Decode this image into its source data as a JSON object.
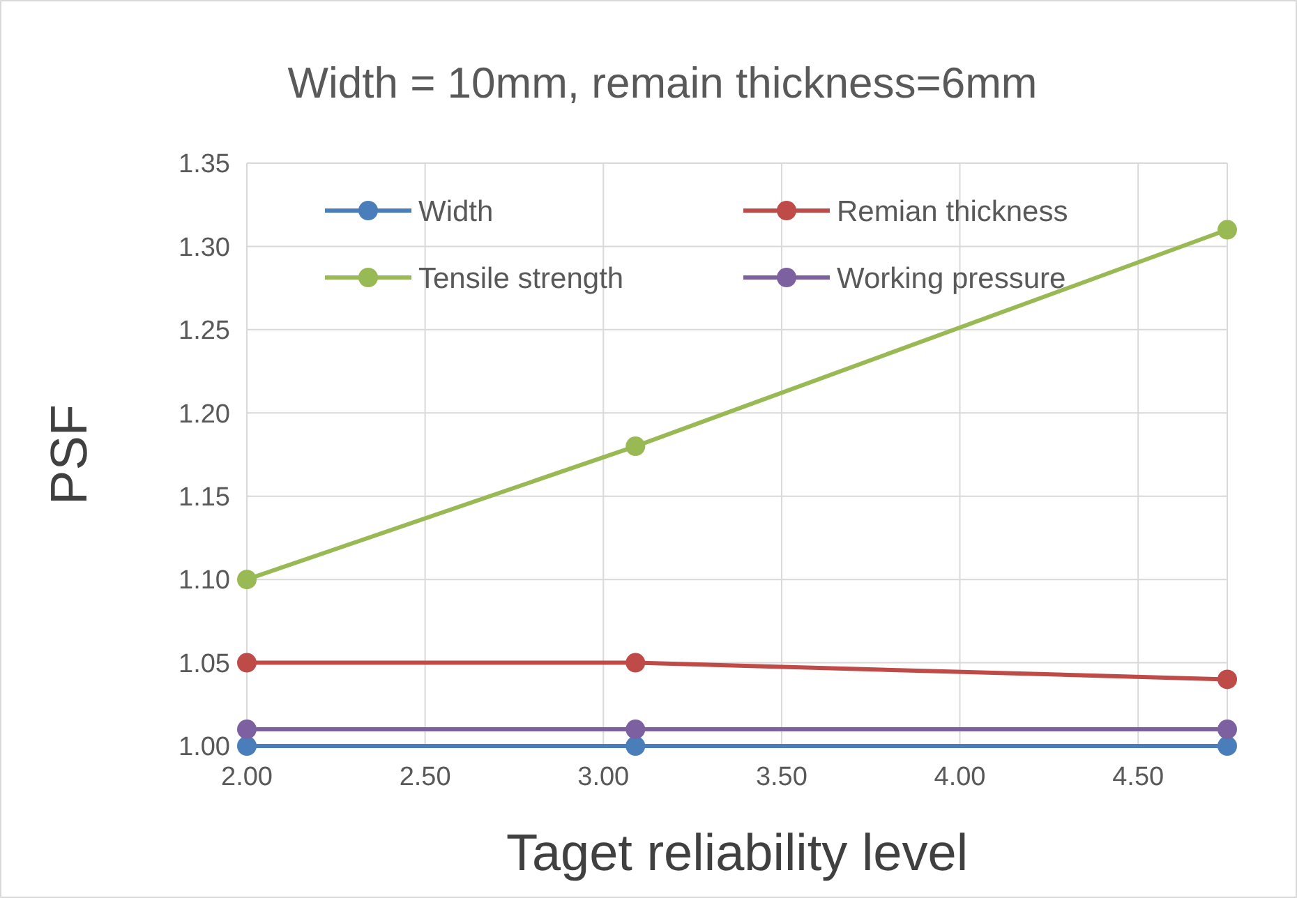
{
  "chart_data": {
    "type": "line",
    "title": "Width = 10mm, remain thickness=6mm",
    "xlabel": "Taget reliability level",
    "ylabel": "PSF",
    "x": [
      2.0,
      3.09,
      4.75
    ],
    "series": [
      {
        "name": "Width",
        "color": "#4a7ebb",
        "values": [
          1.0,
          1.0,
          1.0
        ]
      },
      {
        "name": "Remian thickness",
        "color": "#be4b48",
        "values": [
          1.05,
          1.05,
          1.04
        ]
      },
      {
        "name": "Tensile strength",
        "color": "#98b954",
        "values": [
          1.1,
          1.18,
          1.31
        ]
      },
      {
        "name": "Working pressure",
        "color": "#7d60a0",
        "values": [
          1.01,
          1.01,
          1.01
        ]
      }
    ],
    "xlim": [
      2.0,
      4.75
    ],
    "xticks": [
      {
        "value": 2.0,
        "label": "2.00"
      },
      {
        "value": 2.5,
        "label": "2.50"
      },
      {
        "value": 3.0,
        "label": "3.00"
      },
      {
        "value": 3.5,
        "label": "3.50"
      },
      {
        "value": 4.0,
        "label": "4.00"
      },
      {
        "value": 4.5,
        "label": "4.50"
      }
    ],
    "ylim": [
      1.0,
      1.35
    ],
    "yticks": [
      {
        "value": 1.0,
        "label": "1.00"
      },
      {
        "value": 1.05,
        "label": "1.05"
      },
      {
        "value": 1.1,
        "label": "1.10"
      },
      {
        "value": 1.15,
        "label": "1.15"
      },
      {
        "value": 1.2,
        "label": "1.20"
      },
      {
        "value": 1.25,
        "label": "1.25"
      },
      {
        "value": 1.3,
        "label": "1.30"
      },
      {
        "value": 1.35,
        "label": "1.35"
      }
    ],
    "grid": true,
    "legend": "top",
    "marker": "circle",
    "line_style": "solid"
  }
}
